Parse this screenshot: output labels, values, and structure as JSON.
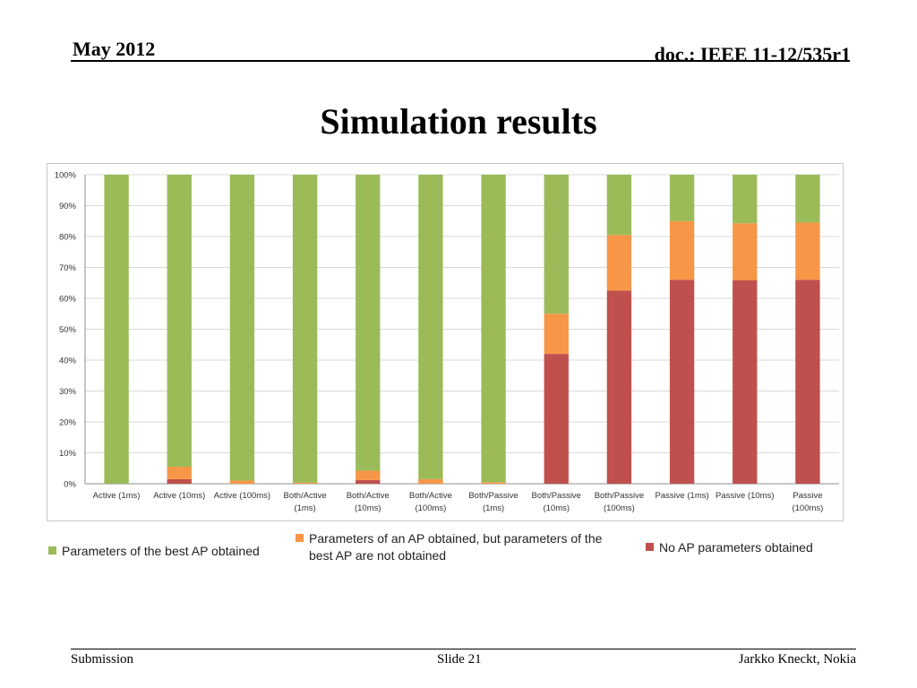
{
  "header": {
    "date": "May 2012",
    "doc": "doc.: IEEE 11-12/535r1"
  },
  "title": "Simulation results",
  "chart_data": {
    "type": "bar",
    "stacked": true,
    "percent": true,
    "ylim": [
      0,
      100
    ],
    "yticks": [
      "0%",
      "10%",
      "20%",
      "30%",
      "40%",
      "50%",
      "60%",
      "70%",
      "80%",
      "90%",
      "100%"
    ],
    "grid": true,
    "legend_position": "bottom",
    "categories": [
      [
        "Active (1ms)"
      ],
      [
        "Active (10ms)"
      ],
      [
        "Active (100ms)"
      ],
      [
        "Both/Active",
        "(1ms)"
      ],
      [
        "Both/Active",
        "(10ms)"
      ],
      [
        "Both/Active",
        "(100ms)"
      ],
      [
        "Both/Passive",
        "(1ms)"
      ],
      [
        "Both/Passive",
        "(10ms)"
      ],
      [
        "Both/Passive",
        "(100ms)"
      ],
      [
        "Passive (1ms)"
      ],
      [
        "Passive (10ms)"
      ],
      [
        "Passive",
        "(100ms)"
      ]
    ],
    "series": [
      {
        "name": "No AP parameters obtained",
        "color": "#C0504D",
        "values": [
          0,
          1.5,
          0,
          0,
          1.2,
          0,
          0,
          42,
          62.5,
          66,
          65.8,
          66
        ]
      },
      {
        "name": "Parameters of an AP obtained, but parameters of the best AP are not obtained",
        "color": "#F79646",
        "values": [
          0,
          4,
          1,
          0.3,
          3,
          1.5,
          0.5,
          13,
          18,
          19,
          18.5,
          18.5
        ]
      },
      {
        "name": "Parameters of the best AP obtained",
        "color": "#9BBB59",
        "values": [
          100,
          94.5,
          99,
          99.7,
          95.8,
          98.5,
          99.5,
          45,
          19.5,
          15,
          15.7,
          15.5
        ]
      }
    ]
  },
  "legend": {
    "items": [
      {
        "lines": [
          "Parameters of the best AP obtained"
        ],
        "color": "#9BBB59"
      },
      {
        "lines": [
          "Parameters of an AP obtained, but parameters of the",
          "best AP are not obtained"
        ],
        "color": "#F79646"
      },
      {
        "lines": [
          "No AP parameters obtained"
        ],
        "color": "#C0504D"
      }
    ]
  },
  "footer": {
    "left": "Submission",
    "center": "Slide 21",
    "right": "Jarkko Kneckt, Nokia"
  }
}
